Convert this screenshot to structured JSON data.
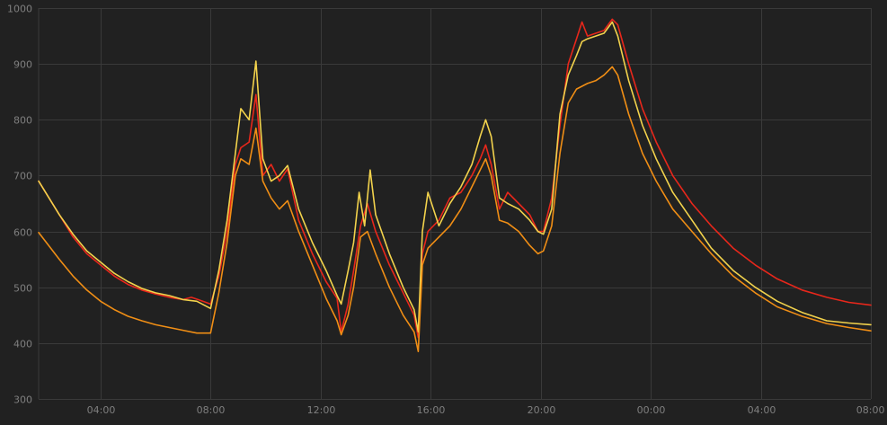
{
  "chart_data": {
    "type": "line",
    "title": "",
    "xlabel": "",
    "ylabel": "",
    "ylim": [
      300,
      1000
    ],
    "y_ticks": [
      "300",
      "400",
      "500",
      "600",
      "700",
      "800",
      "900",
      "1000"
    ],
    "x_ticks": [
      "04:00",
      "08:00",
      "12:00",
      "16:00",
      "20:00",
      "00:00",
      "04:00",
      "08:00"
    ],
    "x_range_hours": [
      1.75,
      32.0
    ],
    "x_tick_hours": [
      4,
      8,
      12,
      16,
      20,
      24,
      28,
      32
    ],
    "grid": true,
    "legend": "none",
    "series": [
      {
        "color": "#e8271b",
        "points": [
          [
            1.75,
            690
          ],
          [
            2.5,
            630
          ],
          [
            3.0,
            590
          ],
          [
            3.5,
            560
          ],
          [
            4.0,
            540
          ],
          [
            4.5,
            520
          ],
          [
            5.0,
            505
          ],
          [
            5.5,
            495
          ],
          [
            6.0,
            488
          ],
          [
            6.5,
            482
          ],
          [
            7.0,
            478
          ],
          [
            7.3,
            482
          ],
          [
            7.6,
            477
          ],
          [
            8.0,
            470
          ],
          [
            8.3,
            520
          ],
          [
            8.6,
            600
          ],
          [
            8.9,
            720
          ],
          [
            9.1,
            750
          ],
          [
            9.4,
            760
          ],
          [
            9.65,
            845
          ],
          [
            9.9,
            700
          ],
          [
            10.2,
            720
          ],
          [
            10.5,
            690
          ],
          [
            10.8,
            712
          ],
          [
            11.2,
            620
          ],
          [
            11.7,
            560
          ],
          [
            12.2,
            510
          ],
          [
            12.6,
            480
          ],
          [
            12.75,
            420
          ],
          [
            13.0,
            470
          ],
          [
            13.2,
            530
          ],
          [
            13.45,
            610
          ],
          [
            13.7,
            650
          ],
          [
            14.0,
            600
          ],
          [
            14.5,
            540
          ],
          [
            15.0,
            490
          ],
          [
            15.4,
            450
          ],
          [
            15.55,
            410
          ],
          [
            15.7,
            560
          ],
          [
            15.9,
            600
          ],
          [
            16.3,
            620
          ],
          [
            16.7,
            660
          ],
          [
            17.1,
            670
          ],
          [
            17.5,
            700
          ],
          [
            17.8,
            730
          ],
          [
            18.0,
            755
          ],
          [
            18.2,
            720
          ],
          [
            18.5,
            640
          ],
          [
            18.8,
            670
          ],
          [
            19.2,
            650
          ],
          [
            19.6,
            630
          ],
          [
            19.9,
            600
          ],
          [
            20.1,
            600
          ],
          [
            20.4,
            660
          ],
          [
            20.7,
            790
          ],
          [
            21.0,
            900
          ],
          [
            21.3,
            945
          ],
          [
            21.5,
            975
          ],
          [
            21.7,
            950
          ],
          [
            22.0,
            955
          ],
          [
            22.3,
            960
          ],
          [
            22.6,
            980
          ],
          [
            22.8,
            970
          ],
          [
            23.2,
            900
          ],
          [
            23.7,
            820
          ],
          [
            24.2,
            760
          ],
          [
            24.8,
            700
          ],
          [
            25.5,
            650
          ],
          [
            26.2,
            610
          ],
          [
            27.0,
            570
          ],
          [
            27.8,
            540
          ],
          [
            28.6,
            515
          ],
          [
            29.5,
            495
          ],
          [
            30.4,
            482
          ],
          [
            31.2,
            473
          ],
          [
            32.0,
            468
          ]
        ]
      },
      {
        "color": "#f2d24c",
        "points": [
          [
            1.75,
            690
          ],
          [
            2.5,
            630
          ],
          [
            3.0,
            595
          ],
          [
            3.5,
            565
          ],
          [
            4.0,
            545
          ],
          [
            4.5,
            525
          ],
          [
            5.0,
            510
          ],
          [
            5.5,
            498
          ],
          [
            6.0,
            490
          ],
          [
            6.5,
            485
          ],
          [
            7.0,
            478
          ],
          [
            7.5,
            475
          ],
          [
            8.0,
            462
          ],
          [
            8.3,
            530
          ],
          [
            8.6,
            620
          ],
          [
            8.9,
            740
          ],
          [
            9.1,
            820
          ],
          [
            9.4,
            800
          ],
          [
            9.65,
            905
          ],
          [
            9.9,
            730
          ],
          [
            10.2,
            690
          ],
          [
            10.5,
            700
          ],
          [
            10.8,
            718
          ],
          [
            11.2,
            640
          ],
          [
            11.7,
            580
          ],
          [
            12.2,
            530
          ],
          [
            12.6,
            485
          ],
          [
            12.75,
            470
          ],
          [
            13.0,
            530
          ],
          [
            13.2,
            580
          ],
          [
            13.4,
            670
          ],
          [
            13.6,
            610
          ],
          [
            13.8,
            710
          ],
          [
            14.0,
            630
          ],
          [
            14.5,
            560
          ],
          [
            15.0,
            500
          ],
          [
            15.4,
            460
          ],
          [
            15.55,
            420
          ],
          [
            15.7,
            600
          ],
          [
            15.9,
            670
          ],
          [
            16.3,
            610
          ],
          [
            16.7,
            650
          ],
          [
            17.1,
            680
          ],
          [
            17.5,
            720
          ],
          [
            17.8,
            770
          ],
          [
            18.0,
            800
          ],
          [
            18.2,
            770
          ],
          [
            18.5,
            660
          ],
          [
            18.8,
            650
          ],
          [
            19.2,
            640
          ],
          [
            19.6,
            620
          ],
          [
            19.9,
            600
          ],
          [
            20.1,
            595
          ],
          [
            20.4,
            640
          ],
          [
            20.7,
            810
          ],
          [
            21.0,
            880
          ],
          [
            21.3,
            915
          ],
          [
            21.5,
            940
          ],
          [
            21.7,
            945
          ],
          [
            22.0,
            950
          ],
          [
            22.3,
            955
          ],
          [
            22.6,
            975
          ],
          [
            22.8,
            950
          ],
          [
            23.2,
            870
          ],
          [
            23.7,
            790
          ],
          [
            24.2,
            730
          ],
          [
            24.8,
            670
          ],
          [
            25.5,
            620
          ],
          [
            26.2,
            570
          ],
          [
            27.0,
            530
          ],
          [
            27.8,
            500
          ],
          [
            28.6,
            475
          ],
          [
            29.5,
            455
          ],
          [
            30.4,
            440
          ],
          [
            31.2,
            436
          ],
          [
            32.0,
            433
          ]
        ]
      },
      {
        "color": "#f08e15",
        "points": [
          [
            1.75,
            598
          ],
          [
            2.5,
            550
          ],
          [
            3.0,
            520
          ],
          [
            3.5,
            495
          ],
          [
            4.0,
            475
          ],
          [
            4.5,
            460
          ],
          [
            5.0,
            448
          ],
          [
            5.5,
            440
          ],
          [
            6.0,
            433
          ],
          [
            6.5,
            428
          ],
          [
            7.0,
            423
          ],
          [
            7.5,
            418
          ],
          [
            8.0,
            418
          ],
          [
            8.3,
            490
          ],
          [
            8.6,
            580
          ],
          [
            8.9,
            700
          ],
          [
            9.1,
            730
          ],
          [
            9.4,
            720
          ],
          [
            9.65,
            785
          ],
          [
            9.9,
            690
          ],
          [
            10.2,
            660
          ],
          [
            10.5,
            640
          ],
          [
            10.8,
            655
          ],
          [
            11.2,
            600
          ],
          [
            11.7,
            540
          ],
          [
            12.2,
            480
          ],
          [
            12.6,
            440
          ],
          [
            12.75,
            415
          ],
          [
            13.0,
            450
          ],
          [
            13.2,
            500
          ],
          [
            13.45,
            590
          ],
          [
            13.7,
            600
          ],
          [
            14.0,
            560
          ],
          [
            14.5,
            500
          ],
          [
            15.0,
            450
          ],
          [
            15.4,
            420
          ],
          [
            15.55,
            385
          ],
          [
            15.7,
            540
          ],
          [
            15.9,
            570
          ],
          [
            16.3,
            590
          ],
          [
            16.7,
            610
          ],
          [
            17.1,
            640
          ],
          [
            17.5,
            680
          ],
          [
            17.8,
            710
          ],
          [
            18.0,
            730
          ],
          [
            18.2,
            700
          ],
          [
            18.5,
            620
          ],
          [
            18.8,
            615
          ],
          [
            19.2,
            600
          ],
          [
            19.6,
            575
          ],
          [
            19.9,
            560
          ],
          [
            20.1,
            565
          ],
          [
            20.4,
            610
          ],
          [
            20.7,
            740
          ],
          [
            21.0,
            830
          ],
          [
            21.3,
            855
          ],
          [
            21.5,
            860
          ],
          [
            21.7,
            865
          ],
          [
            22.0,
            870
          ],
          [
            22.3,
            880
          ],
          [
            22.6,
            895
          ],
          [
            22.8,
            880
          ],
          [
            23.2,
            810
          ],
          [
            23.7,
            740
          ],
          [
            24.2,
            690
          ],
          [
            24.8,
            640
          ],
          [
            25.5,
            600
          ],
          [
            26.2,
            560
          ],
          [
            27.0,
            520
          ],
          [
            27.8,
            490
          ],
          [
            28.6,
            465
          ],
          [
            29.5,
            448
          ],
          [
            30.4,
            435
          ],
          [
            31.2,
            428
          ],
          [
            32.0,
            422
          ]
        ]
      }
    ]
  }
}
